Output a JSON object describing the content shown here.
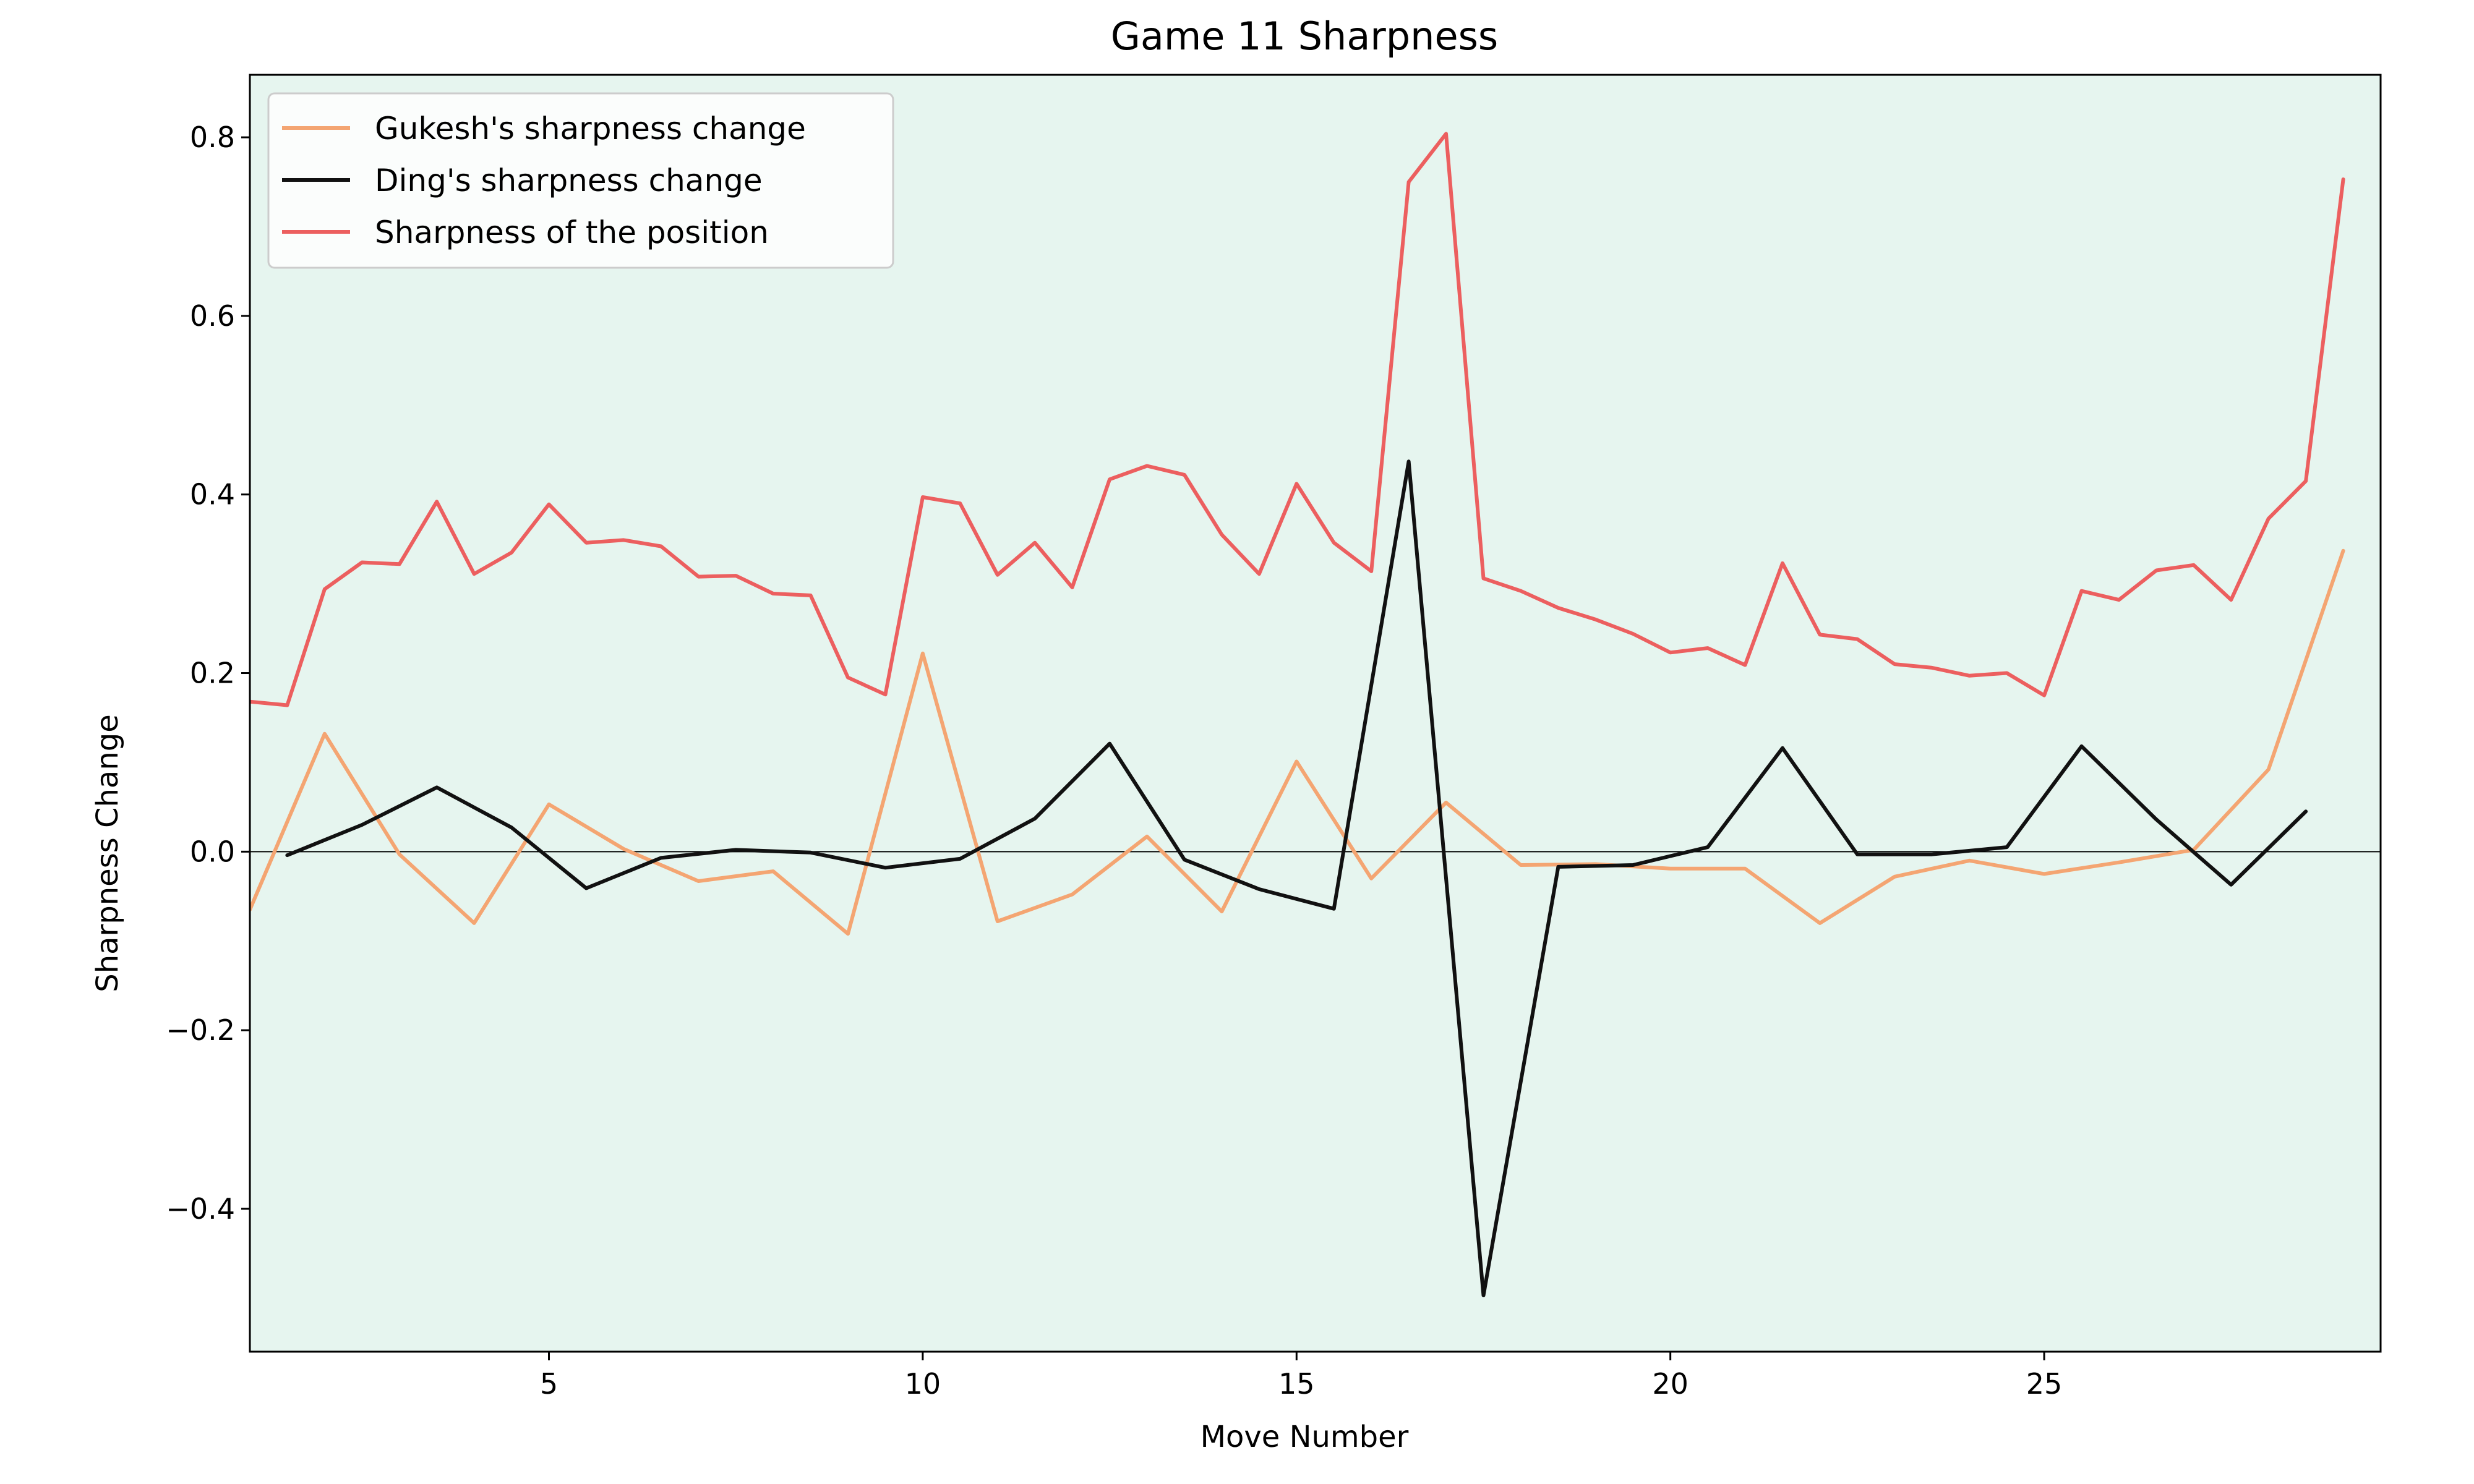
{
  "chart_data": {
    "type": "line",
    "title": "Game 11 Sharpness",
    "xlabel": "Move Number",
    "ylabel": "Sharpness Change",
    "xlim": [
      1,
      29.5
    ],
    "ylim": [
      -0.56,
      0.87
    ],
    "xticks": [
      5,
      10,
      15,
      20,
      25
    ],
    "yticks": [
      -0.4,
      -0.2,
      0.0,
      0.2,
      0.4,
      0.6,
      0.8
    ],
    "ytick_labels": [
      "−0.4",
      "−0.2",
      "0.0",
      "0.2",
      "0.4",
      "0.6",
      "0.8"
    ],
    "grid": false,
    "zero_line": true,
    "legend_position": "top-left",
    "plot_background": "#e6f5ef",
    "series": [
      {
        "name": "Gukesh's sharpness change",
        "color": "#f4a572",
        "x": [
          1,
          2,
          3,
          4,
          5,
          6,
          7,
          8,
          9,
          10,
          11,
          12,
          13,
          14,
          15,
          16,
          17,
          18,
          19,
          20,
          21,
          22,
          23,
          24,
          25,
          26,
          27,
          28,
          29
        ],
        "y": [
          -0.065,
          0.132,
          -0.003,
          -0.08,
          0.053,
          0.003,
          -0.033,
          -0.022,
          -0.092,
          0.222,
          -0.078,
          -0.048,
          0.017,
          -0.067,
          0.101,
          -0.03,
          0.055,
          -0.015,
          -0.014,
          -0.019,
          -0.019,
          -0.08,
          -0.028,
          -0.01,
          -0.025,
          -0.012,
          0.002,
          0.092,
          0.337
        ]
      },
      {
        "name": "Ding's sharpness change",
        "color": "#111111",
        "x": [
          1.5,
          2.5,
          3.5,
          4.5,
          5.5,
          6.5,
          7.5,
          8.5,
          9.5,
          10.5,
          11.5,
          12.5,
          13.5,
          14.5,
          15.5,
          16.5,
          17.5,
          18.5,
          19.5,
          20.5,
          21.5,
          22.5,
          23.5,
          24.5,
          25.5,
          26.5,
          27.5,
          28.5
        ],
        "y": [
          -0.004,
          0.03,
          0.072,
          0.027,
          -0.041,
          -0.007,
          0.002,
          -0.001,
          -0.018,
          -0.008,
          0.037,
          0.121,
          -0.009,
          -0.042,
          -0.064,
          0.437,
          -0.497,
          -0.017,
          -0.015,
          0.005,
          0.116,
          -0.003,
          -0.003,
          0.005,
          0.118,
          0.036,
          -0.037,
          0.045
        ]
      },
      {
        "name": "Sharpness of the position",
        "color": "#ec5f5f",
        "x": [
          1,
          1.5,
          2,
          2.5,
          3,
          3.5,
          4,
          4.5,
          5,
          5.5,
          6,
          6.5,
          7,
          7.5,
          8,
          8.5,
          9,
          9.5,
          10,
          10.5,
          11,
          11.5,
          12,
          12.5,
          13,
          13.5,
          14,
          14.5,
          15,
          15.5,
          16,
          16.5,
          17,
          17.5,
          18,
          18.5,
          19,
          19.5,
          20,
          20.5,
          21,
          21.5,
          22,
          22.5,
          23,
          23.5,
          24,
          24.5,
          25,
          25.5,
          26,
          26.5,
          27,
          27.5,
          28,
          28.5,
          29
        ],
        "y": [
          0.168,
          0.164,
          0.294,
          0.324,
          0.322,
          0.392,
          0.311,
          0.335,
          0.389,
          0.346,
          0.349,
          0.342,
          0.308,
          0.309,
          0.289,
          0.287,
          0.195,
          0.176,
          0.397,
          0.39,
          0.31,
          0.346,
          0.296,
          0.417,
          0.432,
          0.422,
          0.355,
          0.311,
          0.412,
          0.346,
          0.314,
          0.75,
          0.804,
          0.306,
          0.292,
          0.273,
          0.26,
          0.244,
          0.223,
          0.228,
          0.209,
          0.323,
          0.243,
          0.238,
          0.21,
          0.206,
          0.197,
          0.2,
          0.175,
          0.292,
          0.282,
          0.315,
          0.321,
          0.282,
          0.373,
          0.415,
          0.753
        ]
      }
    ]
  }
}
